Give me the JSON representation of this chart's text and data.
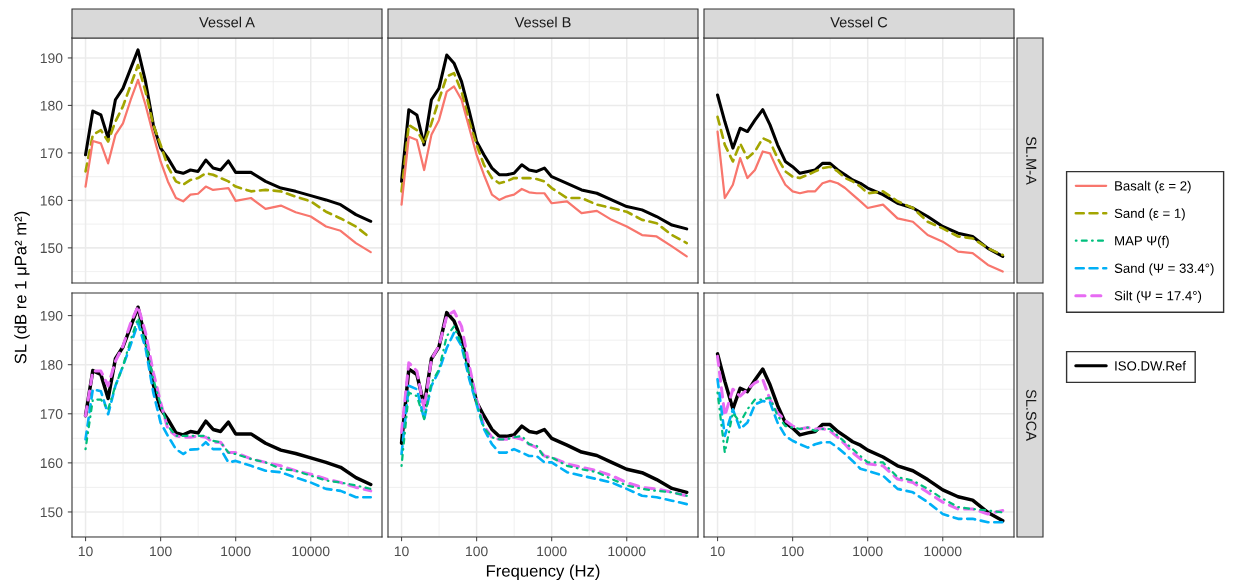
{
  "chart_data": [
    {
      "type": "line",
      "title": "Vessel A",
      "ylabel": "SL (dB re 1 μPa² m²)",
      "legend": "right",
      "log": "x",
      "grid": true,
      "tick_labels": "y",
      "xlim": [
        6.6,
        89000
      ],
      "ylim": [
        142.6,
        194.2
      ],
      "xticks": [
        10,
        100,
        1000,
        10000
      ],
      "yticks": [
        150,
        160,
        170,
        180,
        190
      ],
      "x": [
        10,
        12.5,
        16,
        20,
        25,
        31.5,
        40,
        50,
        63,
        80,
        100,
        125,
        160,
        200,
        250,
        315,
        400,
        500,
        630,
        800,
        1000,
        1600,
        2500,
        4000,
        6300,
        10000,
        16000,
        25000,
        40000,
        63000
      ],
      "series": [
        {
          "name": "Basalt (ε = 2)",
          "color": "#f8766d",
          "line_style": "solid",
          "values": [
            162.9,
            172.5,
            172.0,
            167.8,
            173.8,
            176.2,
            181.2,
            185.4,
            180.1,
            173.8,
            168.2,
            164.0,
            160.5,
            159.8,
            161.2,
            161.4,
            162.9,
            162.2,
            162.4,
            162.6,
            159.9,
            160.5,
            158.2,
            158.9,
            157.5,
            156.6,
            154.5,
            153.6,
            151.0,
            149.1
          ]
        },
        {
          "name": "Sand (ε = 1)",
          "color": "#a3a500",
          "line_style": "dashed",
          "values": [
            166.1,
            173.8,
            174.8,
            172.4,
            176.6,
            179.8,
            184.3,
            188.5,
            182.9,
            175.9,
            171.7,
            167.1,
            164.0,
            163.3,
            164.3,
            164.7,
            165.7,
            165.4,
            164.7,
            164.0,
            162.9,
            161.9,
            162.2,
            161.9,
            160.8,
            159.8,
            157.6,
            156.2,
            154.5,
            152.0
          ]
        },
        {
          "name": "ISO.DW.Ref",
          "color": "#000000",
          "line_style": "solid",
          "values": [
            169.6,
            178.8,
            178.0,
            173.1,
            181.2,
            183.6,
            187.8,
            191.7,
            185.0,
            175.9,
            171.0,
            168.9,
            166.1,
            165.7,
            166.4,
            166.1,
            168.5,
            166.8,
            166.4,
            168.3,
            165.9,
            165.9,
            164.0,
            162.6,
            161.9,
            161.0,
            160.1,
            159.1,
            157.0,
            155.6
          ]
        }
      ]
    },
    {
      "type": "line",
      "title": "Vessel B",
      "legend": "right",
      "log": "x",
      "grid": true,
      "tick_labels": false,
      "xlim": [
        6.6,
        89000
      ],
      "ylim": [
        142.6,
        194.2
      ],
      "xticks": [
        10,
        100,
        1000,
        10000
      ],
      "yticks": [
        150,
        160,
        170,
        180,
        190
      ],
      "x": [
        10,
        12.5,
        16,
        20,
        25,
        31.5,
        40,
        50,
        63,
        80,
        100,
        125,
        160,
        200,
        250,
        315,
        400,
        500,
        630,
        800,
        1000,
        1600,
        2500,
        4000,
        6300,
        10000,
        16000,
        25000,
        40000,
        63000
      ],
      "series": [
        {
          "name": "Basalt (ε = 2)",
          "color": "#f8766d",
          "line_style": "solid",
          "values": [
            159.1,
            173.4,
            172.7,
            166.4,
            173.8,
            176.9,
            182.9,
            184.0,
            181.2,
            175.2,
            169.6,
            165.4,
            161.2,
            160.1,
            160.8,
            161.2,
            162.4,
            161.7,
            161.5,
            161.5,
            159.4,
            159.8,
            157.3,
            157.8,
            155.9,
            154.5,
            152.7,
            152.4,
            150.3,
            148.2
          ]
        },
        {
          "name": "Sand (ε = 1)",
          "color": "#a3a500",
          "line_style": "dashed",
          "values": [
            161.9,
            175.9,
            174.8,
            172.0,
            176.2,
            181.2,
            186.1,
            186.8,
            182.9,
            176.6,
            171.7,
            167.5,
            164.7,
            163.6,
            164.0,
            164.7,
            164.7,
            164.7,
            164.5,
            164.0,
            162.6,
            160.5,
            160.5,
            159.1,
            158.4,
            157.6,
            155.9,
            155.2,
            152.7,
            151.0
          ]
        },
        {
          "name": "ISO.DW.Ref",
          "color": "#000000",
          "line_style": "solid",
          "values": [
            164.0,
            179.1,
            178.0,
            171.7,
            181.2,
            183.6,
            190.6,
            188.9,
            185.0,
            178.7,
            172.4,
            169.6,
            166.8,
            165.4,
            165.4,
            165.7,
            167.5,
            166.4,
            166.1,
            166.8,
            165.0,
            163.6,
            162.2,
            161.5,
            160.1,
            158.7,
            158.0,
            156.6,
            154.8,
            154.0
          ]
        }
      ]
    },
    {
      "type": "line",
      "title": "Vessel C",
      "y2label": "SL.M-A",
      "log": "x",
      "grid": true,
      "tick_labels": false,
      "legend": "right",
      "xlim": [
        6.6,
        89000
      ],
      "ylim": [
        142.6,
        194.2
      ],
      "xticks": [
        10,
        100,
        1000,
        10000
      ],
      "yticks": [
        150,
        160,
        170,
        180,
        190
      ],
      "x": [
        10,
        12.5,
        16,
        20,
        25,
        31.5,
        40,
        50,
        63,
        80,
        100,
        125,
        160,
        200,
        250,
        315,
        400,
        500,
        630,
        800,
        1000,
        1600,
        2500,
        4000,
        6300,
        10000,
        16000,
        25000,
        40000,
        63000
      ],
      "series": [
        {
          "name": "Basalt (ε = 2)",
          "color": "#f8766d",
          "line_style": "solid",
          "values": [
            174.5,
            160.5,
            163.3,
            168.9,
            164.7,
            166.4,
            170.3,
            169.9,
            166.4,
            163.3,
            161.9,
            161.5,
            161.9,
            161.9,
            163.6,
            164.1,
            163.6,
            162.6,
            161.2,
            159.8,
            158.4,
            159.1,
            156.2,
            155.5,
            152.7,
            151.3,
            149.2,
            148.9,
            146.4,
            145.0
          ]
        },
        {
          "name": "Sand (ε = 1)",
          "color": "#a3a500",
          "line_style": "dashed",
          "values": [
            177.6,
            171.7,
            168.2,
            172.0,
            168.9,
            170.3,
            173.1,
            172.4,
            168.9,
            166.1,
            165.0,
            164.7,
            165.4,
            166.1,
            166.8,
            167.1,
            166.1,
            164.7,
            164.0,
            162.9,
            161.5,
            161.9,
            159.8,
            158.4,
            155.5,
            154.1,
            152.4,
            152.0,
            149.9,
            148.5
          ]
        },
        {
          "name": "ISO.DW.Ref",
          "color": "#000000",
          "line_style": "solid",
          "values": [
            182.2,
            176.6,
            171.0,
            175.2,
            174.5,
            176.9,
            179.1,
            175.9,
            171.7,
            168.2,
            167.1,
            165.7,
            166.1,
            166.4,
            167.8,
            167.8,
            166.4,
            165.4,
            164.3,
            163.6,
            162.6,
            161.2,
            159.4,
            158.4,
            156.6,
            154.5,
            153.1,
            152.4,
            149.9,
            148.2
          ]
        }
      ]
    },
    {
      "type": "line",
      "legend": "right",
      "log": "x",
      "grid": true,
      "xlim": [
        6.6,
        89000
      ],
      "ylim": [
        144.9,
        194.6
      ],
      "xticks": [
        10,
        100,
        1000,
        10000
      ],
      "yticks": [
        150,
        160,
        170,
        180,
        190
      ],
      "x": [
        10,
        12.5,
        16,
        20,
        25,
        31.5,
        40,
        50,
        63,
        80,
        100,
        125,
        160,
        200,
        250,
        315,
        400,
        500,
        630,
        800,
        1000,
        1600,
        2500,
        4000,
        6300,
        10000,
        16000,
        25000,
        40000,
        63000
      ],
      "series": [
        {
          "name": "MAP Ψ(f)",
          "color": "#00bf7d",
          "line_style": "dotted",
          "values": [
            162.8,
            172.9,
            172.9,
            170.9,
            175.7,
            179.7,
            185.1,
            189.5,
            184.5,
            177.0,
            171.9,
            167.5,
            165.5,
            165.5,
            165.5,
            165.5,
            165.5,
            164.5,
            164.2,
            162.1,
            161.8,
            160.8,
            160.1,
            158.8,
            158.4,
            157.4,
            156.4,
            156.0,
            155.4,
            154.7
          ]
        },
        {
          "name": "Sand (Ψ = 33.4°)",
          "color": "#00b0f6",
          "line_style": "dashed",
          "values": [
            164.8,
            175.0,
            174.6,
            169.9,
            175.7,
            179.7,
            184.1,
            188.5,
            183.4,
            174.3,
            168.2,
            165.5,
            162.8,
            161.8,
            162.7,
            162.8,
            164.2,
            162.8,
            162.8,
            160.1,
            160.4,
            159.4,
            158.4,
            158.1,
            157.0,
            156.0,
            154.7,
            154.3,
            153.0,
            153.0
          ]
        },
        {
          "name": "Silt (Ψ = 17.4°)",
          "color": "#e76bf3",
          "line_style": "dashed",
          "values": [
            169.6,
            178.7,
            178.7,
            175.7,
            180.7,
            183.8,
            188.5,
            191.9,
            186.5,
            178.4,
            172.3,
            166.9,
            165.5,
            165.2,
            165.2,
            165.5,
            165.2,
            164.2,
            164.2,
            162.1,
            162.1,
            160.8,
            160.1,
            159.4,
            158.4,
            157.7,
            156.7,
            156.0,
            155.0,
            154.3
          ]
        },
        {
          "name": "ISO.DW.Ref",
          "color": "#000000",
          "line_style": "solid",
          "values": [
            169.6,
            178.8,
            178.0,
            173.1,
            181.2,
            183.6,
            187.8,
            191.7,
            185.0,
            175.9,
            171.0,
            168.9,
            166.1,
            165.7,
            166.4,
            166.1,
            168.5,
            166.8,
            166.4,
            168.3,
            165.9,
            165.9,
            164.0,
            162.6,
            161.9,
            161.0,
            160.1,
            159.1,
            157.0,
            155.6
          ]
        }
      ]
    },
    {
      "type": "line",
      "xlabel": "Frequency (Hz)",
      "legend": "right",
      "log": "x",
      "grid": true,
      "tick_labels": "x",
      "xlim": [
        6.6,
        89000
      ],
      "ylim": [
        144.9,
        194.6
      ],
      "xticks": [
        10,
        100,
        1000,
        10000
      ],
      "yticks": [
        150,
        160,
        170,
        180,
        190
      ],
      "x": [
        10,
        12.5,
        16,
        20,
        25,
        31.5,
        40,
        50,
        63,
        80,
        100,
        125,
        160,
        200,
        250,
        315,
        400,
        500,
        630,
        800,
        1000,
        1600,
        2500,
        4000,
        6300,
        10000,
        16000,
        25000,
        40000,
        63000
      ],
      "series": [
        {
          "name": "MAP Ψ(f)",
          "color": "#00bf7d",
          "line_style": "dotted",
          "values": [
            159.4,
            174.3,
            173.6,
            168.9,
            176.3,
            179.0,
            185.8,
            187.8,
            184.1,
            178.0,
            172.3,
            167.2,
            165.2,
            164.8,
            164.8,
            165.2,
            165.5,
            163.8,
            163.5,
            161.1,
            161.1,
            159.4,
            158.7,
            158.1,
            156.7,
            155.4,
            154.7,
            154.3,
            154.0,
            153.3
          ]
        },
        {
          "name": "Sand (Ψ = 33.4°)",
          "color": "#00b0f6",
          "line_style": "dashed",
          "values": [
            161.8,
            175.7,
            175.0,
            168.9,
            175.7,
            178.7,
            183.4,
            186.5,
            183.8,
            177.0,
            171.9,
            166.9,
            163.8,
            162.1,
            162.1,
            162.8,
            162.1,
            161.4,
            161.4,
            160.1,
            160.1,
            158.1,
            157.4,
            156.7,
            156.0,
            154.7,
            153.3,
            153.0,
            152.3,
            151.6
          ]
        },
        {
          "name": "Silt (Ψ = 17.4°)",
          "color": "#e76bf3",
          "line_style": "dashed",
          "values": [
            166.2,
            180.4,
            178.7,
            170.9,
            181.1,
            183.8,
            189.9,
            190.9,
            187.8,
            179.7,
            172.9,
            167.5,
            165.2,
            164.8,
            164.8,
            165.2,
            164.8,
            163.8,
            163.1,
            161.4,
            161.1,
            159.8,
            159.1,
            158.4,
            157.4,
            156.0,
            155.0,
            154.7,
            154.0,
            153.3
          ]
        },
        {
          "name": "ISO.DW.Ref",
          "color": "#000000",
          "line_style": "solid",
          "values": [
            164.0,
            179.1,
            178.0,
            171.7,
            181.2,
            183.6,
            190.6,
            188.9,
            185.0,
            178.7,
            172.4,
            169.6,
            166.8,
            165.4,
            165.4,
            165.7,
            167.5,
            166.4,
            166.1,
            166.8,
            165.0,
            163.6,
            162.2,
            161.5,
            160.1,
            158.7,
            158.0,
            156.6,
            154.8,
            154.0
          ]
        }
      ]
    },
    {
      "type": "line",
      "y2label": "SL.SCA",
      "log": "x",
      "grid": true,
      "tick_labels": "x",
      "legend": "right",
      "xlim": [
        6.6,
        89000
      ],
      "ylim": [
        144.9,
        194.6
      ],
      "xticks": [
        10,
        100,
        1000,
        10000
      ],
      "yticks": [
        150,
        160,
        170,
        180,
        190
      ],
      "x": [
        10,
        12.5,
        16,
        20,
        25,
        31.5,
        40,
        50,
        63,
        80,
        100,
        125,
        160,
        200,
        250,
        315,
        400,
        500,
        630,
        800,
        1000,
        1600,
        2500,
        4000,
        6300,
        10000,
        16000,
        25000,
        40000,
        63000
      ],
      "series": [
        {
          "name": "MAP Ψ(f)",
          "color": "#00bf7d",
          "line_style": "dotted",
          "values": [
            174.3,
            162.1,
            170.2,
            168.2,
            170.9,
            172.9,
            172.9,
            173.3,
            169.6,
            167.5,
            167.2,
            166.9,
            167.2,
            166.5,
            166.9,
            166.9,
            165.5,
            164.2,
            162.8,
            161.4,
            160.1,
            160.1,
            157.1,
            156.4,
            154.7,
            152.7,
            151.0,
            150.6,
            150.3,
            149.9
          ]
        },
        {
          "name": "Sand (Ψ = 33.4°)",
          "color": "#00b0f6",
          "line_style": "dashed",
          "values": [
            177.0,
            165.5,
            170.9,
            166.9,
            168.2,
            171.9,
            172.6,
            172.3,
            168.2,
            165.5,
            164.5,
            163.8,
            163.1,
            163.8,
            164.2,
            164.2,
            163.1,
            161.8,
            160.4,
            158.8,
            158.4,
            157.4,
            154.7,
            154.0,
            152.0,
            149.6,
            148.6,
            148.6,
            147.9,
            147.9
          ]
        },
        {
          "name": "Silt (Ψ = 17.4°)",
          "color": "#e76bf3",
          "line_style": "dashed",
          "values": [
            181.7,
            169.6,
            175.0,
            173.6,
            175.0,
            176.3,
            177.0,
            172.9,
            170.2,
            168.6,
            167.5,
            166.9,
            167.2,
            166.9,
            167.0,
            166.5,
            165.2,
            163.8,
            162.1,
            160.8,
            159.8,
            159.4,
            156.7,
            156.0,
            154.0,
            152.0,
            150.6,
            150.6,
            149.6,
            150.3
          ]
        },
        {
          "name": "ISO.DW.Ref",
          "color": "#000000",
          "line_style": "solid",
          "values": [
            182.2,
            176.6,
            171.0,
            175.2,
            174.5,
            176.9,
            179.1,
            175.9,
            171.7,
            168.2,
            167.1,
            165.7,
            166.1,
            166.4,
            167.8,
            167.8,
            166.4,
            165.4,
            164.3,
            163.6,
            162.6,
            161.2,
            159.4,
            158.4,
            156.6,
            154.5,
            153.1,
            152.4,
            149.9,
            148.2
          ]
        }
      ]
    }
  ]
}
